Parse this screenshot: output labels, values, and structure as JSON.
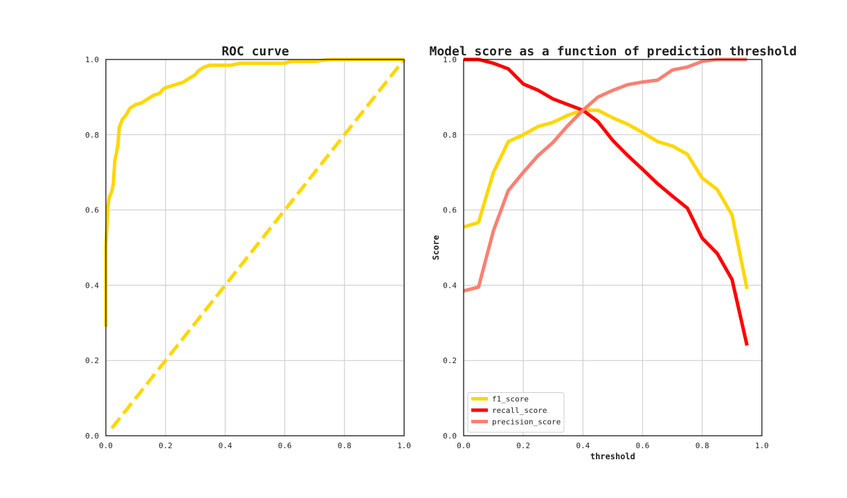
{
  "chart_data": [
    {
      "type": "line",
      "title": "ROC curve",
      "xlabel": "",
      "ylabel": "",
      "xlim": [
        0,
        1
      ],
      "ylim": [
        0,
        1
      ],
      "xticks": [
        "0.0",
        "0.2",
        "0.4",
        "0.6",
        "0.8",
        "1.0"
      ],
      "yticks": [
        "0.0",
        "0.2",
        "0.4",
        "0.6",
        "0.8",
        "1.0"
      ],
      "grid": true,
      "series": [
        {
          "color": "#FFD700",
          "style": "solid",
          "x": [
            0.0,
            0.0,
            0.003,
            0.006,
            0.01,
            0.02,
            0.025,
            0.03,
            0.035,
            0.04,
            0.045,
            0.05,
            0.055,
            0.06,
            0.065,
            0.07,
            0.08,
            0.09,
            0.1,
            0.12,
            0.14,
            0.16,
            0.18,
            0.19,
            0.2,
            0.22,
            0.24,
            0.26,
            0.27,
            0.3,
            0.31,
            0.33,
            0.35,
            0.38,
            0.42,
            0.45,
            0.47,
            0.5,
            0.55,
            0.6,
            0.62,
            0.65,
            0.7,
            0.75,
            0.8,
            0.9,
            1.0
          ],
          "y": [
            0.29,
            0.5,
            0.55,
            0.6,
            0.63,
            0.65,
            0.67,
            0.73,
            0.75,
            0.77,
            0.82,
            0.83,
            0.84,
            0.845,
            0.85,
            0.855,
            0.87,
            0.875,
            0.88,
            0.885,
            0.895,
            0.905,
            0.91,
            0.92,
            0.925,
            0.93,
            0.935,
            0.94,
            0.945,
            0.96,
            0.97,
            0.98,
            0.985,
            0.985,
            0.985,
            0.99,
            0.99,
            0.99,
            0.99,
            0.99,
            0.995,
            0.995,
            0.995,
            1.0,
            1.0,
            1.0,
            1.0
          ]
        },
        {
          "color": "#FFD700",
          "style": "dashed",
          "x": [
            0.02,
            1.0
          ],
          "y": [
            0.02,
            1.0
          ]
        }
      ]
    },
    {
      "type": "line",
      "title": "Model score as a function of prediction threshold",
      "xlabel": "threshold",
      "ylabel": "Score",
      "xlim": [
        0,
        1
      ],
      "ylim": [
        0,
        1
      ],
      "xticks": [
        "0.0",
        "0.2",
        "0.4",
        "0.6",
        "0.8",
        "1.0"
      ],
      "yticks": [
        "0.0",
        "0.2",
        "0.4",
        "0.6",
        "0.8",
        "1.0"
      ],
      "grid": true,
      "legend": "lower-left",
      "x": [
        0.0,
        0.05,
        0.1,
        0.15,
        0.2,
        0.25,
        0.3,
        0.35,
        0.4,
        0.45,
        0.5,
        0.55,
        0.6,
        0.65,
        0.7,
        0.75,
        0.8,
        0.85,
        0.9,
        0.95
      ],
      "series": [
        {
          "name": "f1_score",
          "color": "#FFD700",
          "values": [
            0.555,
            0.567,
            0.7,
            0.782,
            0.8,
            0.822,
            0.833,
            0.852,
            0.865,
            0.865,
            0.845,
            0.828,
            0.806,
            0.782,
            0.77,
            0.748,
            0.685,
            0.655,
            0.587,
            0.39
          ]
        },
        {
          "name": "recall_score",
          "color": "#FF0000",
          "values": [
            1.0,
            1.0,
            0.99,
            0.975,
            0.935,
            0.918,
            0.895,
            0.88,
            0.865,
            0.835,
            0.785,
            0.745,
            0.708,
            0.67,
            0.637,
            0.605,
            0.525,
            0.485,
            0.415,
            0.24
          ]
        },
        {
          "name": "precision_score",
          "color": "#FA8072",
          "values": [
            0.385,
            0.395,
            0.545,
            0.652,
            0.7,
            0.745,
            0.78,
            0.825,
            0.865,
            0.9,
            0.918,
            0.933,
            0.94,
            0.945,
            0.972,
            0.98,
            0.995,
            1.0,
            1.0,
            1.0
          ]
        }
      ]
    }
  ]
}
